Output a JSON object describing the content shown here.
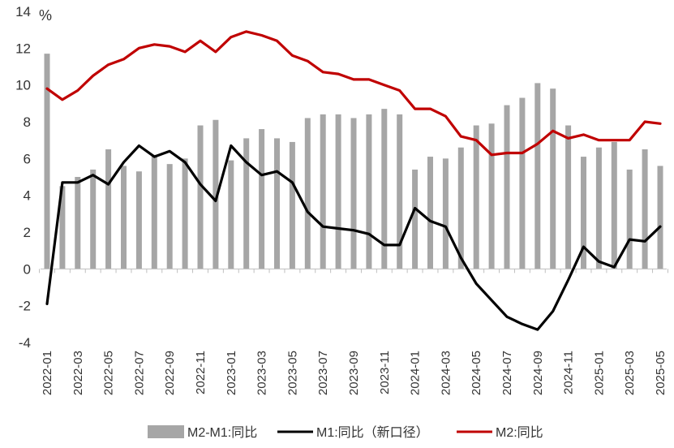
{
  "chart_data": {
    "type": "bar",
    "unit_label": "%",
    "ylim": [
      -4,
      14
    ],
    "yticks": [
      -4,
      -2,
      0,
      2,
      4,
      6,
      8,
      10,
      12,
      14
    ],
    "grid": false,
    "legend_position": "bottom",
    "categories": [
      "2022-01",
      "2022-02",
      "2022-03",
      "2022-04",
      "2022-05",
      "2022-06",
      "2022-07",
      "2022-08",
      "2022-09",
      "2022-10",
      "2022-11",
      "2022-12",
      "2023-01",
      "2023-02",
      "2023-03",
      "2023-04",
      "2023-05",
      "2023-06",
      "2023-07",
      "2023-08",
      "2023-09",
      "2023-10",
      "2023-11",
      "2023-12",
      "2024-01",
      "2024-02",
      "2024-03",
      "2024-04",
      "2024-05",
      "2024-06",
      "2024-07",
      "2024-08",
      "2024-09",
      "2024-10",
      "2024-11",
      "2024-12",
      "2025-01",
      "2025-02",
      "2025-03",
      "2025-04",
      "2025-05"
    ],
    "x_tick_labels": [
      "2022-01",
      "2022-03",
      "2022-05",
      "2022-07",
      "2022-09",
      "2022-11",
      "2023-01",
      "2023-03",
      "2023-05",
      "2023-07",
      "2023-09",
      "2023-11",
      "2024-01",
      "2024-03",
      "2024-05",
      "2024-07",
      "2024-09",
      "2024-11",
      "2025-01",
      "2025-03",
      "2025-05"
    ],
    "series": [
      {
        "name": "M2-M1:同比",
        "type": "bar",
        "color": "#a6a6a6",
        "values": [
          11.7,
          4.5,
          5.0,
          5.4,
          6.5,
          5.6,
          5.3,
          6.2,
          5.7,
          6.0,
          7.8,
          8.1,
          5.9,
          7.1,
          7.6,
          7.1,
          6.9,
          8.2,
          8.4,
          8.4,
          8.2,
          8.4,
          8.7,
          8.4,
          5.4,
          6.1,
          6.0,
          6.6,
          7.8,
          7.9,
          8.9,
          9.3,
          10.1,
          9.8,
          7.8,
          6.1,
          6.6,
          6.9,
          5.4,
          6.5,
          5.6
        ]
      },
      {
        "name": "M1:同比（新口径）",
        "type": "line",
        "color": "#000000",
        "values": [
          -1.9,
          4.7,
          4.7,
          5.1,
          4.6,
          5.8,
          6.7,
          6.1,
          6.4,
          5.8,
          4.6,
          3.7,
          6.7,
          5.8,
          5.1,
          5.3,
          4.7,
          3.1,
          2.3,
          2.2,
          2.1,
          1.9,
          1.3,
          1.3,
          3.3,
          2.6,
          2.3,
          0.6,
          -0.8,
          -1.7,
          -2.6,
          -3.0,
          -3.3,
          -2.3,
          -0.6,
          1.2,
          0.4,
          0.1,
          1.6,
          1.5,
          2.3
        ]
      },
      {
        "name": "M2:同比",
        "type": "line",
        "color": "#c00000",
        "values": [
          9.8,
          9.2,
          9.7,
          10.5,
          11.1,
          11.4,
          12.0,
          12.2,
          12.1,
          11.8,
          12.4,
          11.8,
          12.6,
          12.9,
          12.7,
          12.4,
          11.6,
          11.3,
          10.7,
          10.6,
          10.3,
          10.3,
          10.0,
          9.7,
          8.7,
          8.7,
          8.3,
          7.2,
          7.0,
          6.2,
          6.3,
          6.3,
          6.8,
          7.5,
          7.1,
          7.3,
          7.0,
          7.0,
          7.0,
          8.0,
          7.9
        ]
      }
    ]
  }
}
